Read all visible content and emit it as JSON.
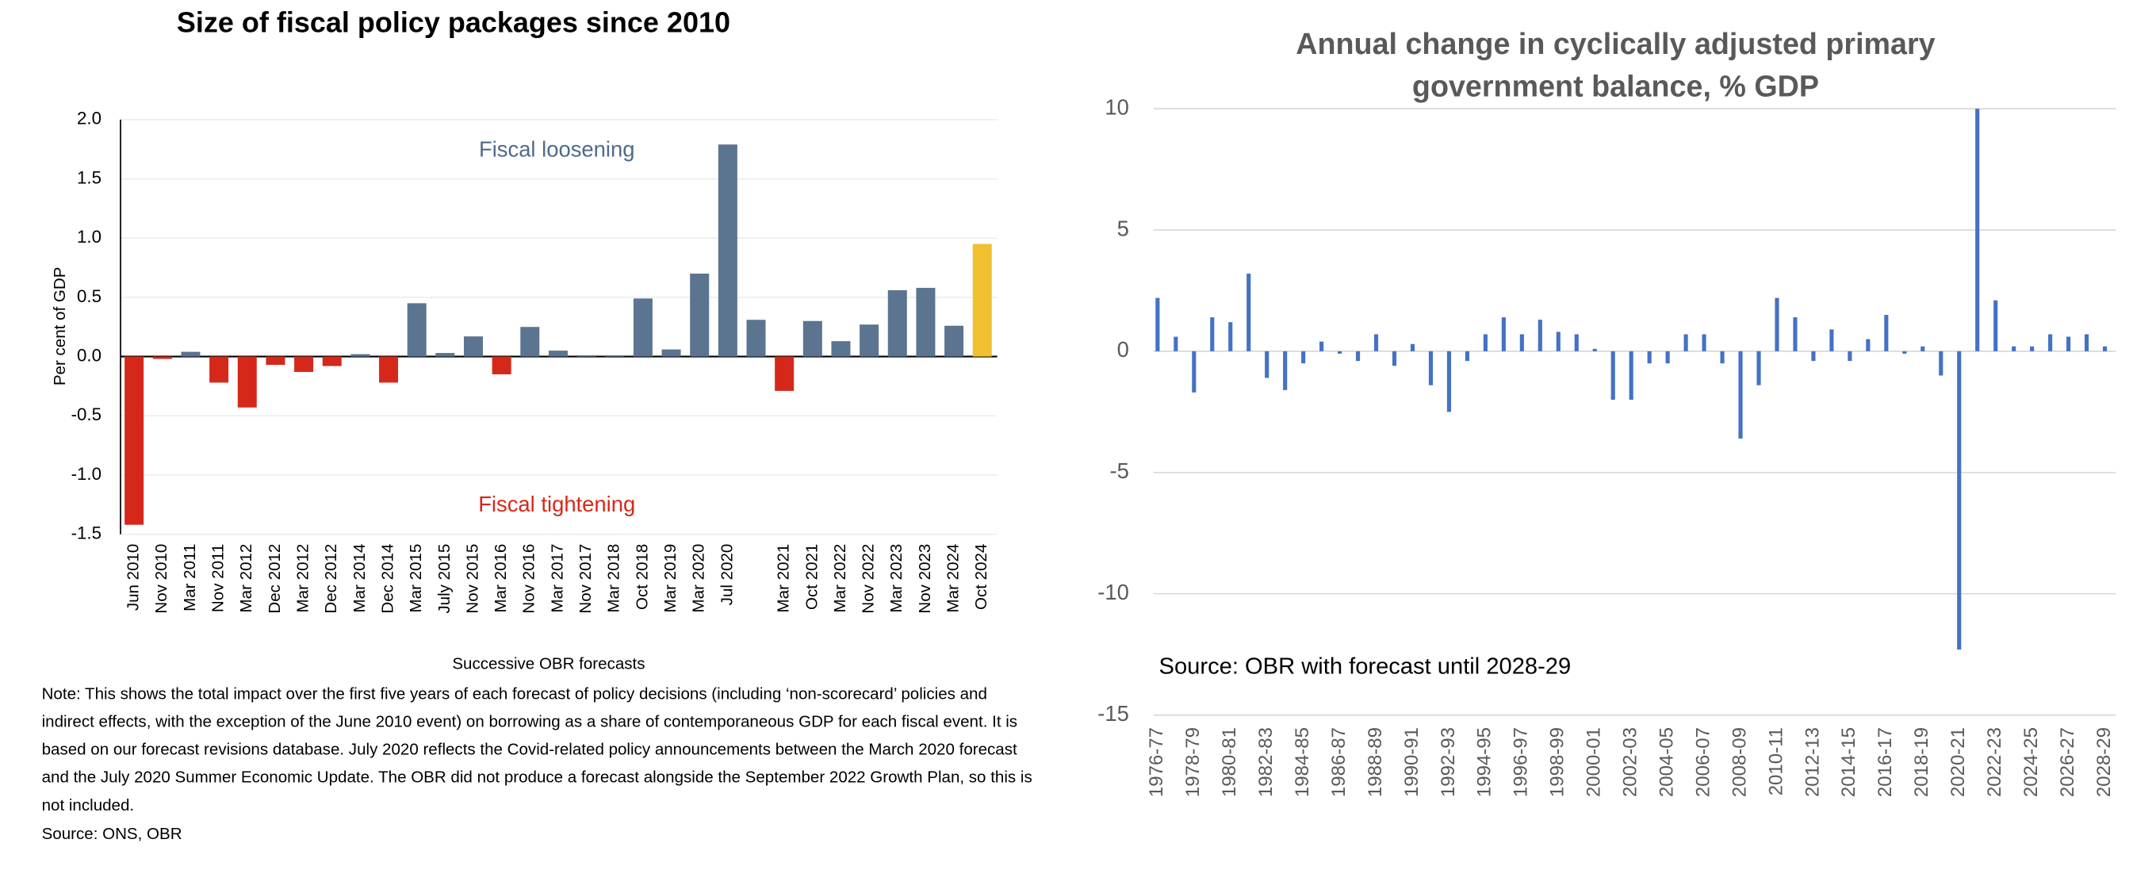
{
  "chart_data": [
    {
      "type": "bar",
      "title": "Size of fiscal policy packages since 2010",
      "y_label": "Per cent of GDP",
      "x_label": "Successive OBR forecasts",
      "annotations": [
        {
          "text": "Fiscal loosening",
          "color": "#4f6a8c"
        },
        {
          "text": "Fiscal tightening",
          "color": "#d6281a"
        }
      ],
      "categories": [
        "Jun 2010",
        "Nov 2010",
        "Mar 2011",
        "Nov 2011",
        "Mar 2012",
        "Dec 2012",
        "Mar 2012",
        "Dec 2012",
        "Mar 2014",
        "Dec 2014",
        "Mar 2015",
        "July 2015",
        "Nov 2015",
        "Mar 2016",
        "Nov 2016",
        "Mar 2017",
        "Nov 2017",
        "Mar 2018",
        "Oct 2018",
        "Mar 2019",
        "Mar 2020",
        "Jul 2020",
        null,
        "Mar 2021",
        "Oct 2021",
        "Mar 2022",
        "Nov 2022",
        "Mar 2023",
        "Nov 2023",
        "Mar 2024",
        "Oct 2024"
      ],
      "values": [
        -1.42,
        -0.02,
        0.04,
        -0.22,
        -0.43,
        -0.07,
        -0.13,
        -0.08,
        0.02,
        -0.22,
        0.45,
        0.03,
        0.17,
        -0.15,
        0.25,
        0.05,
        0.01,
        0.01,
        0.49,
        0.06,
        0.7,
        1.79,
        0.31,
        -0.29,
        0.3,
        0.13,
        0.27,
        0.56,
        0.58,
        0.26,
        0.95
      ],
      "colors": [
        "#d6281a",
        "#d6281a",
        "#5b7490",
        "#d6281a",
        "#d6281a",
        "#d6281a",
        "#d6281a",
        "#d6281a",
        "#5b7490",
        "#d6281a",
        "#5b7490",
        "#5b7490",
        "#5b7490",
        "#d6281a",
        "#5b7490",
        "#5b7490",
        "#5b7490",
        "#5b7490",
        "#5b7490",
        "#5b7490",
        "#5b7490",
        "#5b7490",
        "#5b7490",
        "#d6281a",
        "#5b7490",
        "#5b7490",
        "#5b7490",
        "#5b7490",
        "#5b7490",
        "#5b7490",
        "#efc030"
      ],
      "ylim": [
        -1.5,
        2.0
      ],
      "yticks": [
        {
          "value": 2.0,
          "label": "2.0"
        },
        1.5,
        {
          "value": 1.0,
          "label": "1.0"
        },
        0.5,
        {
          "value": 0.0,
          "label": "0.0"
        },
        -0.5,
        {
          "value": -1.0,
          "label": "-1.0"
        },
        -1.5
      ],
      "grid": true,
      "note": [
        "Note: This shows the total impact over the first five years of each forecast of policy decisions (including ‘non-scorecard’ policies and",
        "indirect effects, with the exception of the June 2010 event) on borrowing as a share of contemporaneous GDP for each fiscal event. It is",
        "based on our forecast revisions database. July 2020 reflects the Covid-related policy announcements between the March 2020 forecast",
        "and the July 2020 Summer Economic Update. The OBR did not produce a forecast alongside the September 2022 Growth Plan, so this is",
        "not included."
      ],
      "source": "Source: ONS, OBR"
    },
    {
      "type": "bar",
      "title": [
        "Annual change in cyclically adjusted primary",
        "government balance, % GDP"
      ],
      "annotation": "Source: OBR with forecast until 2028-29",
      "categories": [
        "1976-77",
        null,
        "1978-79",
        null,
        "1980-81",
        null,
        "1982-83",
        null,
        "1984-85",
        null,
        "1986-87",
        null,
        "1988-89",
        null,
        "1990-91",
        null,
        "1992-93",
        null,
        "1994-95",
        null,
        "1996-97",
        null,
        "1998-99",
        null,
        "2000-01",
        null,
        "2002-03",
        null,
        "2004-05",
        null,
        "2006-07",
        null,
        "2008-09",
        null,
        "2010-11",
        null,
        "2012-13",
        null,
        "2014-15",
        null,
        "2016-17",
        null,
        "2018-19",
        null,
        "2020-21",
        null,
        "2022-23",
        null,
        "2024-25",
        null,
        "2026-27",
        null,
        "2028-29"
      ],
      "values": [
        2.2,
        0.6,
        -1.7,
        1.4,
        1.2,
        3.2,
        -1.1,
        -1.6,
        -0.5,
        0.4,
        -0.1,
        -0.4,
        0.7,
        -0.6,
        0.3,
        -1.4,
        -2.5,
        -0.4,
        0.7,
        1.4,
        0.7,
        1.3,
        0.8,
        0.7,
        0.1,
        -2.0,
        -2.0,
        -0.5,
        -0.5,
        0.7,
        0.7,
        -0.5,
        -3.6,
        -1.4,
        2.2,
        1.4,
        -0.4,
        0.9,
        -0.4,
        0.5,
        1.5,
        -0.1,
        0.2,
        -1.0,
        -12.3,
        10.0,
        2.1,
        0.2,
        0.2,
        0.7,
        0.6,
        0.7,
        0.2
      ],
      "color": "#4472c4",
      "ylim": [
        -15,
        10
      ],
      "yticks": [
        10,
        5,
        0,
        -5,
        -10,
        -15
      ],
      "grid": true
    }
  ]
}
